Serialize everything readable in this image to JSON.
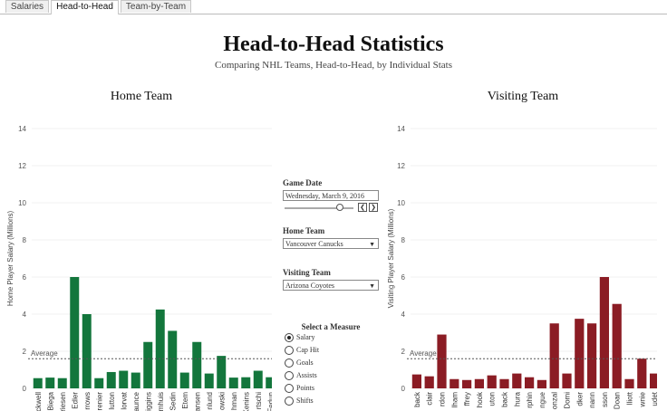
{
  "tabs": [
    {
      "label": "Salaries",
      "active": false
    },
    {
      "label": "Head-to-Head",
      "active": true
    },
    {
      "label": "Team-by-Team",
      "active": false
    }
  ],
  "header": {
    "title": "Head-to-Head  Statistics",
    "subtitle": "Comparing NHL Teams, Head-to-Head, by Individual Stats"
  },
  "home_panel": {
    "title": "Home Team"
  },
  "visiting_panel": {
    "title": "Visiting Team"
  },
  "controls": {
    "game_date_label": "Game Date",
    "game_date_value": "Wednesday, March 9, 2016",
    "slider_value_fraction": 0.8,
    "prev_icon": "chevron-left-icon",
    "next_icon": "chevron-right-icon",
    "home_team_label": "Home Team",
    "home_team_value": "Vancouver Canucks",
    "visiting_team_label": "Visiting Team",
    "visiting_team_value": "Arizona Coyotes",
    "measure_title": "Select a Measure",
    "measures": [
      {
        "label": "Salary",
        "selected": true
      },
      {
        "label": "Cap Hit",
        "selected": false
      },
      {
        "label": "Goals",
        "selected": false
      },
      {
        "label": "Assists",
        "selected": false
      },
      {
        "label": "Points",
        "selected": false
      },
      {
        "label": "Shifts",
        "selected": false
      }
    ]
  },
  "chart_data": [
    {
      "type": "bar",
      "ylabel": "Home Player Salary (Millions)",
      "ylim": [
        0,
        14
      ],
      "yticks": [
        0,
        2,
        4,
        6,
        8,
        10,
        12,
        14
      ],
      "average_label": "Average",
      "average_value": 1.6,
      "color": "#13763c",
      "categories": [
        "ckwell",
        "Biega",
        "riesen",
        "Edler",
        "rrows",
        "renier",
        "lutton",
        "lorvat",
        "aunce",
        "iggins",
        "mhuis",
        "Sedin",
        "Etem",
        "ansen",
        "nlund",
        "owski",
        "hman",
        "Kenins",
        "rtschi",
        "Fedun"
      ],
      "values": [
        0.55,
        0.58,
        0.55,
        6.0,
        4.0,
        0.55,
        0.88,
        0.95,
        0.85,
        2.5,
        4.25,
        3.1,
        0.85,
        2.5,
        0.8,
        1.75,
        0.58,
        0.6,
        0.95,
        0.6
      ]
    },
    {
      "type": "bar",
      "ylabel": "Visiting Player Salary (Millions)",
      "ylim": [
        0,
        14
      ],
      "yticks": [
        0,
        2,
        4,
        6,
        8,
        10,
        12,
        14
      ],
      "average_label": "Average",
      "average_value": 1.6,
      "color": "#8b1c24",
      "categories": [
        "back",
        "clair",
        "rdon",
        "lham",
        "ffrey",
        "hook",
        "uton",
        "back",
        "hura",
        "rphin",
        "ngue",
        "onzal",
        "Domi",
        "dker",
        "nann",
        "sson",
        "Doan",
        "lliott",
        "wnie",
        "udet"
      ],
      "values": [
        0.75,
        0.65,
        2.9,
        0.5,
        0.45,
        0.5,
        0.7,
        0.5,
        0.8,
        0.6,
        0.45,
        3.5,
        0.8,
        3.75,
        3.5,
        6.0,
        4.55,
        0.5,
        1.6,
        0.8
      ]
    }
  ]
}
